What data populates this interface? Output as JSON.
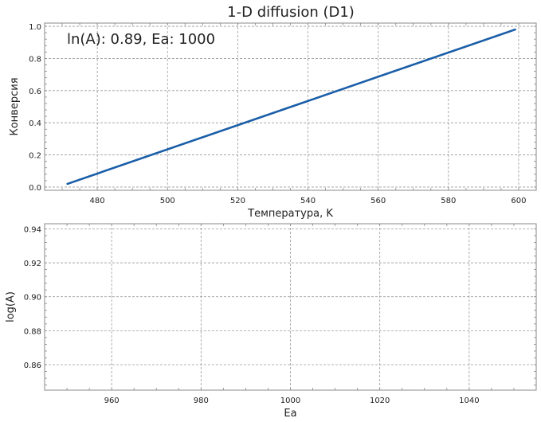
{
  "figure": {
    "title": "1-D diffusion (D1)"
  },
  "colors": {
    "line": "#1a5ea8",
    "grid": "#9a9a9a",
    "frame": "#888888"
  },
  "chart_data": [
    {
      "type": "line",
      "title": "",
      "xlabel": "Температура, K",
      "ylabel": "Конверсия",
      "annotation": "ln(A): 0.89, Ea: 1000",
      "xlim": [
        465,
        605
      ],
      "ylim": [
        -0.02,
        1.02
      ],
      "xticks": [
        480,
        500,
        520,
        540,
        560,
        580,
        600
      ],
      "yticks": [
        0.0,
        0.2,
        0.4,
        0.6,
        0.8,
        1.0
      ],
      "ytick_format": 1,
      "grid": true,
      "series": [
        {
          "x": [
            471.5,
            599
          ],
          "y": [
            0.02,
            0.98
          ]
        }
      ]
    },
    {
      "type": "scatter",
      "title": "",
      "xlabel": "Ea",
      "ylabel": "log(A)",
      "xlim": [
        945,
        1055
      ],
      "ylim": [
        0.845,
        0.943
      ],
      "xticks": [
        960,
        980,
        1000,
        1020,
        1040
      ],
      "yticks": [
        0.86,
        0.88,
        0.9,
        0.92,
        0.94
      ],
      "ytick_format": 2,
      "grid": true,
      "series": []
    }
  ]
}
